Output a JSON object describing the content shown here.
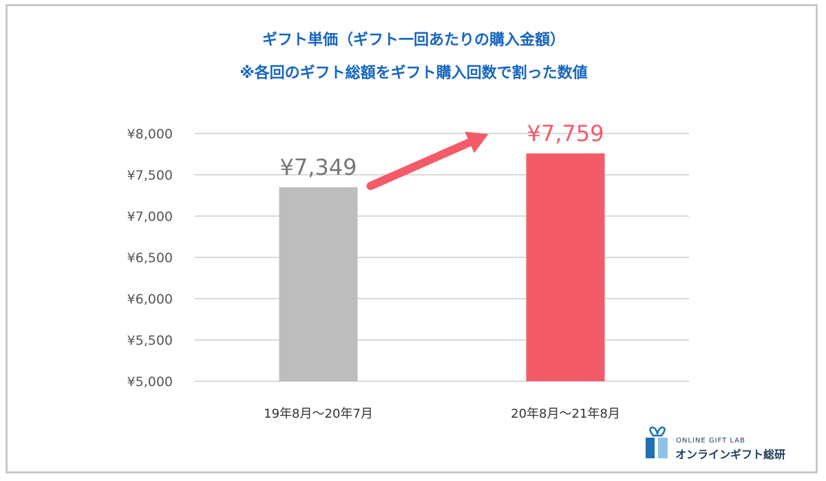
{
  "chart_data": {
    "type": "bar",
    "title": "ギフト単価（ギフト一回あたりの購入金額）",
    "subtitle": "※各回のギフト総額をギフト購入回数で割った数値",
    "categories": [
      "19年8月〜20年7月",
      "20年8月〜21年8月"
    ],
    "values": [
      7349,
      7759
    ],
    "value_labels": [
      "¥7,349",
      "¥7,759"
    ],
    "bar_colors": [
      "#bdbdbd",
      "#f45b69"
    ],
    "label_colors": [
      "#777777",
      "#f45b69"
    ],
    "ylim": [
      5000,
      8000
    ],
    "yticks": [
      5000,
      5500,
      6000,
      6500,
      7000,
      7500,
      8000
    ],
    "ytick_labels": [
      "¥5,000",
      "¥5,500",
      "¥6,000",
      "¥6,500",
      "¥7,000",
      "¥7,500",
      "¥8,000"
    ],
    "grid": true,
    "annotation": "increase-arrow",
    "accent_color": "#f45b69"
  },
  "logo": {
    "sub": "ONLINE GIFT LAB",
    "main": "オンラインギフト総研",
    "icon": "gift-box-icon"
  }
}
